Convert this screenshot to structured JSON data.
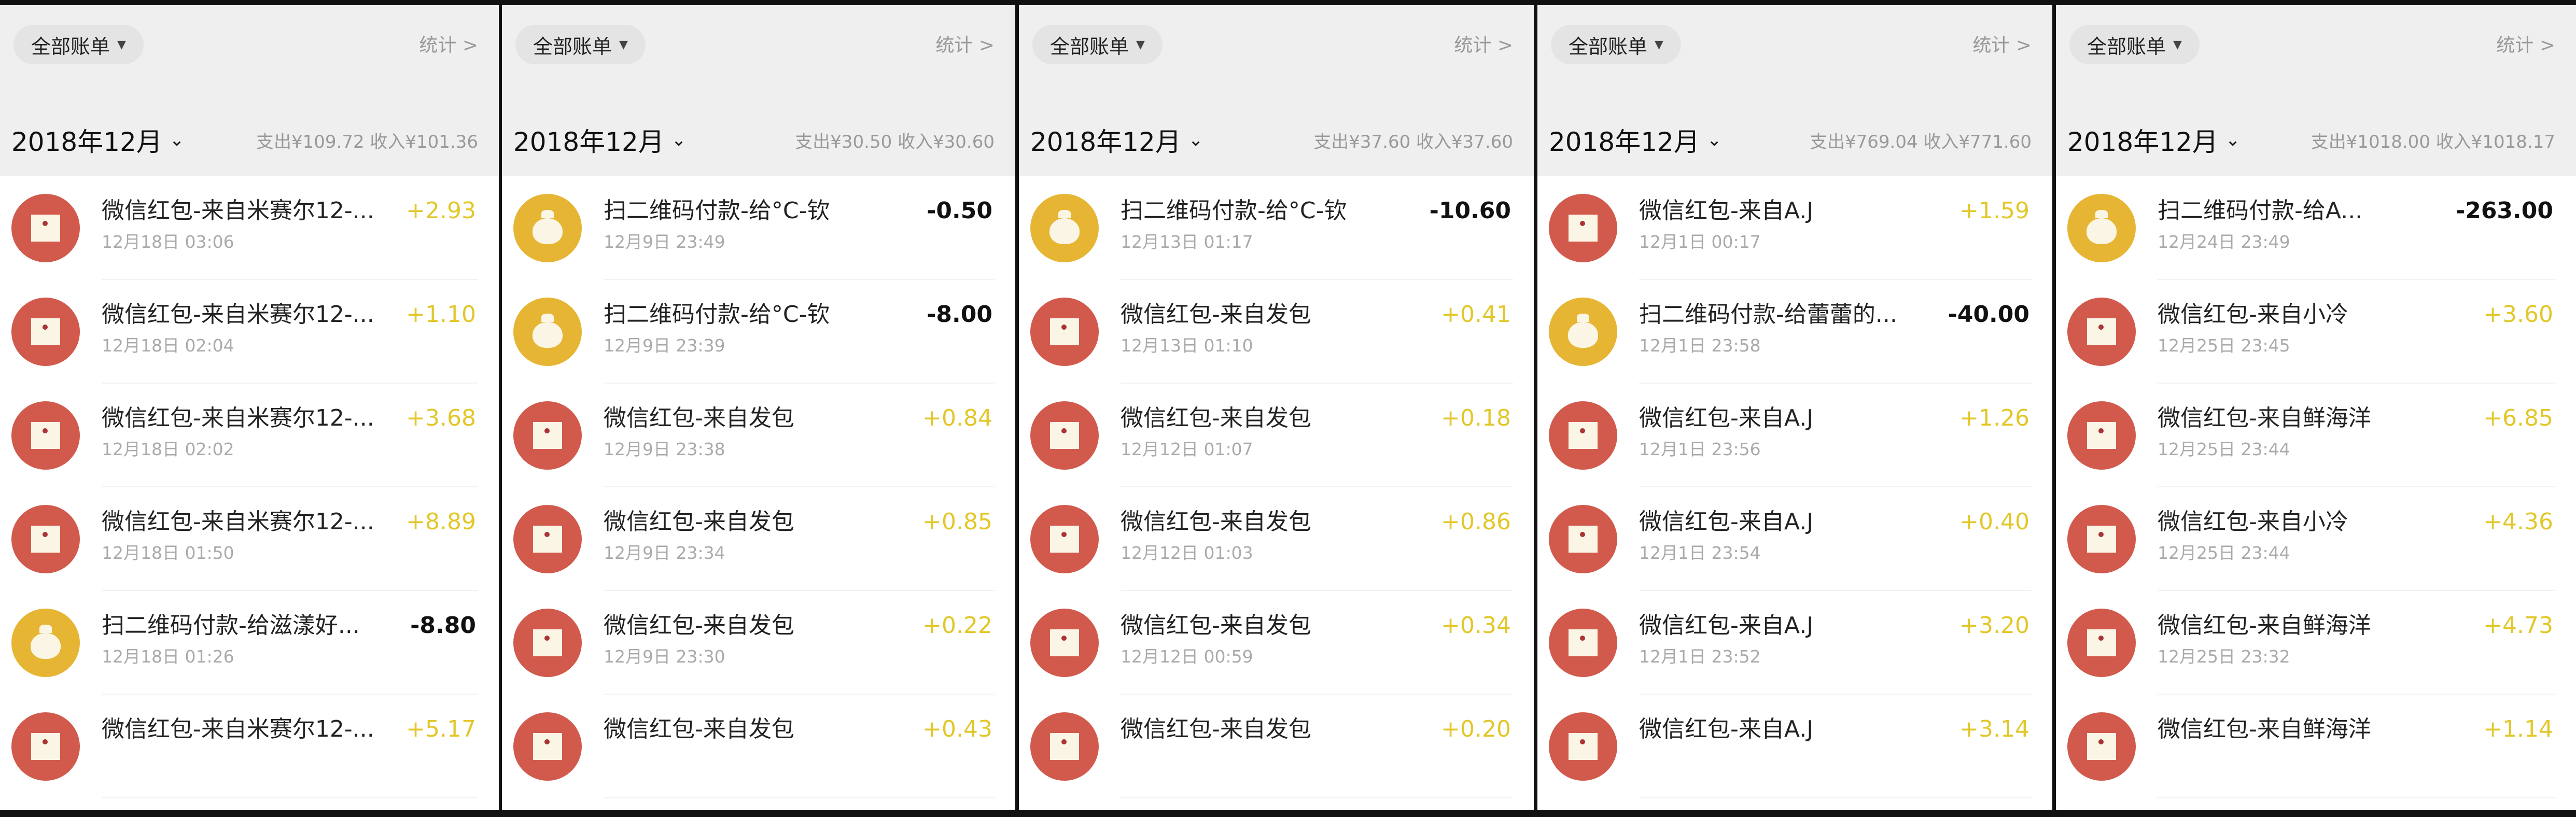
{
  "colors": {
    "income": "#e2c729",
    "expense": "#111111",
    "red_icon": "#d15a4c",
    "yellow_icon": "#e6b533",
    "header_bg": "#efefef"
  },
  "panels": [
    {
      "filter_label": "全部账单",
      "stats_label": "统计 >",
      "month": "2018年12月",
      "summary": "支出¥109.72  收入¥101.36",
      "rows": [
        {
          "icon": "red-envelope-icon",
          "title": "微信红包-来自米赛尔12-...",
          "date": "12月18日 03:06",
          "amount": "+2.93",
          "type": "in"
        },
        {
          "icon": "red-envelope-icon",
          "title": "微信红包-来自米赛尔12-...",
          "date": "12月18日 02:04",
          "amount": "+1.10",
          "type": "in"
        },
        {
          "icon": "red-envelope-icon",
          "title": "微信红包-来自米赛尔12-...",
          "date": "12月18日 02:02",
          "amount": "+3.68",
          "type": "in"
        },
        {
          "icon": "red-envelope-icon",
          "title": "微信红包-来自米赛尔12-...",
          "date": "12月18日 01:50",
          "amount": "+8.89",
          "type": "in"
        },
        {
          "icon": "money-bag-icon",
          "title": "扫二维码付款-给滋漾好...",
          "date": "12月18日 01:26",
          "amount": "-8.80",
          "type": "out"
        },
        {
          "icon": "red-envelope-icon",
          "title": "微信红包-来自米赛尔12-...",
          "date": "",
          "amount": "+5.17",
          "type": "in"
        }
      ]
    },
    {
      "filter_label": "全部账单",
      "stats_label": "统计 >",
      "month": "2018年12月",
      "summary": "支出¥30.50  收入¥30.60",
      "rows": [
        {
          "icon": "money-bag-icon",
          "title": "扫二维码付款-给°C-钦",
          "date": "12月9日 23:49",
          "amount": "-0.50",
          "type": "out"
        },
        {
          "icon": "money-bag-icon",
          "title": "扫二维码付款-给°C-钦",
          "date": "12月9日 23:39",
          "amount": "-8.00",
          "type": "out"
        },
        {
          "icon": "red-envelope-icon",
          "title": "微信红包-来自发包",
          "date": "12月9日 23:38",
          "amount": "+0.84",
          "type": "in"
        },
        {
          "icon": "red-envelope-icon",
          "title": "微信红包-来自发包",
          "date": "12月9日 23:34",
          "amount": "+0.85",
          "type": "in"
        },
        {
          "icon": "red-envelope-icon",
          "title": "微信红包-来自发包",
          "date": "12月9日 23:30",
          "amount": "+0.22",
          "type": "in"
        },
        {
          "icon": "red-envelope-icon",
          "title": "微信红包-来自发包",
          "date": "",
          "amount": "+0.43",
          "type": "in"
        }
      ]
    },
    {
      "filter_label": "全部账单",
      "stats_label": "统计 >",
      "month": "2018年12月",
      "summary": "支出¥37.60  收入¥37.60",
      "rows": [
        {
          "icon": "money-bag-icon",
          "title": "扫二维码付款-给°C-钦",
          "date": "12月13日 01:17",
          "amount": "-10.60",
          "type": "out"
        },
        {
          "icon": "red-envelope-icon",
          "title": "微信红包-来自发包",
          "date": "12月13日 01:10",
          "amount": "+0.41",
          "type": "in"
        },
        {
          "icon": "red-envelope-icon",
          "title": "微信红包-来自发包",
          "date": "12月12日 01:07",
          "amount": "+0.18",
          "type": "in"
        },
        {
          "icon": "red-envelope-icon",
          "title": "微信红包-来自发包",
          "date": "12月12日 01:03",
          "amount": "+0.86",
          "type": "in"
        },
        {
          "icon": "red-envelope-icon",
          "title": "微信红包-来自发包",
          "date": "12月12日 00:59",
          "amount": "+0.34",
          "type": "in"
        },
        {
          "icon": "red-envelope-icon",
          "title": "微信红包-来自发包",
          "date": "",
          "amount": "+0.20",
          "type": "in"
        }
      ]
    },
    {
      "filter_label": "全部账单",
      "stats_label": "统计 >",
      "month": "2018年12月",
      "summary": "支出¥769.04  收入¥771.60",
      "rows": [
        {
          "icon": "red-envelope-icon",
          "title": "微信红包-来自A.J",
          "date": "12月1日 00:17",
          "amount": "+1.59",
          "type": "in"
        },
        {
          "icon": "money-bag-icon",
          "title": "扫二维码付款-给蕾蕾的...",
          "date": "12月1日 23:58",
          "amount": "-40.00",
          "type": "out"
        },
        {
          "icon": "red-envelope-icon",
          "title": "微信红包-来自A.J",
          "date": "12月1日 23:56",
          "amount": "+1.26",
          "type": "in"
        },
        {
          "icon": "red-envelope-icon",
          "title": "微信红包-来自A.J",
          "date": "12月1日 23:54",
          "amount": "+0.40",
          "type": "in"
        },
        {
          "icon": "red-envelope-icon",
          "title": "微信红包-来自A.J",
          "date": "12月1日 23:52",
          "amount": "+3.20",
          "type": "in"
        },
        {
          "icon": "red-envelope-icon",
          "title": "微信红包-来自A.J",
          "date": "",
          "amount": "+3.14",
          "type": "in"
        }
      ]
    },
    {
      "filter_label": "全部账单",
      "stats_label": "统计 >",
      "month": "2018年12月",
      "summary": "支出¥1018.00  收入¥1018.17",
      "rows": [
        {
          "icon": "money-bag-icon",
          "title": "扫二维码付款-给A...",
          "date": "12月24日 23:49",
          "amount": "-263.00",
          "type": "out"
        },
        {
          "icon": "red-envelope-icon",
          "title": "微信红包-来自小冷",
          "date": "12月25日 23:45",
          "amount": "+3.60",
          "type": "in"
        },
        {
          "icon": "red-envelope-icon",
          "title": "微信红包-来自鲜海洋",
          "date": "12月25日 23:44",
          "amount": "+6.85",
          "type": "in"
        },
        {
          "icon": "red-envelope-icon",
          "title": "微信红包-来自小冷",
          "date": "12月25日 23:44",
          "amount": "+4.36",
          "type": "in"
        },
        {
          "icon": "red-envelope-icon",
          "title": "微信红包-来自鲜海洋",
          "date": "12月25日 23:32",
          "amount": "+4.73",
          "type": "in"
        },
        {
          "icon": "red-envelope-icon",
          "title": "微信红包-来自鲜海洋",
          "date": "",
          "amount": "+1.14",
          "type": "in"
        }
      ]
    }
  ]
}
